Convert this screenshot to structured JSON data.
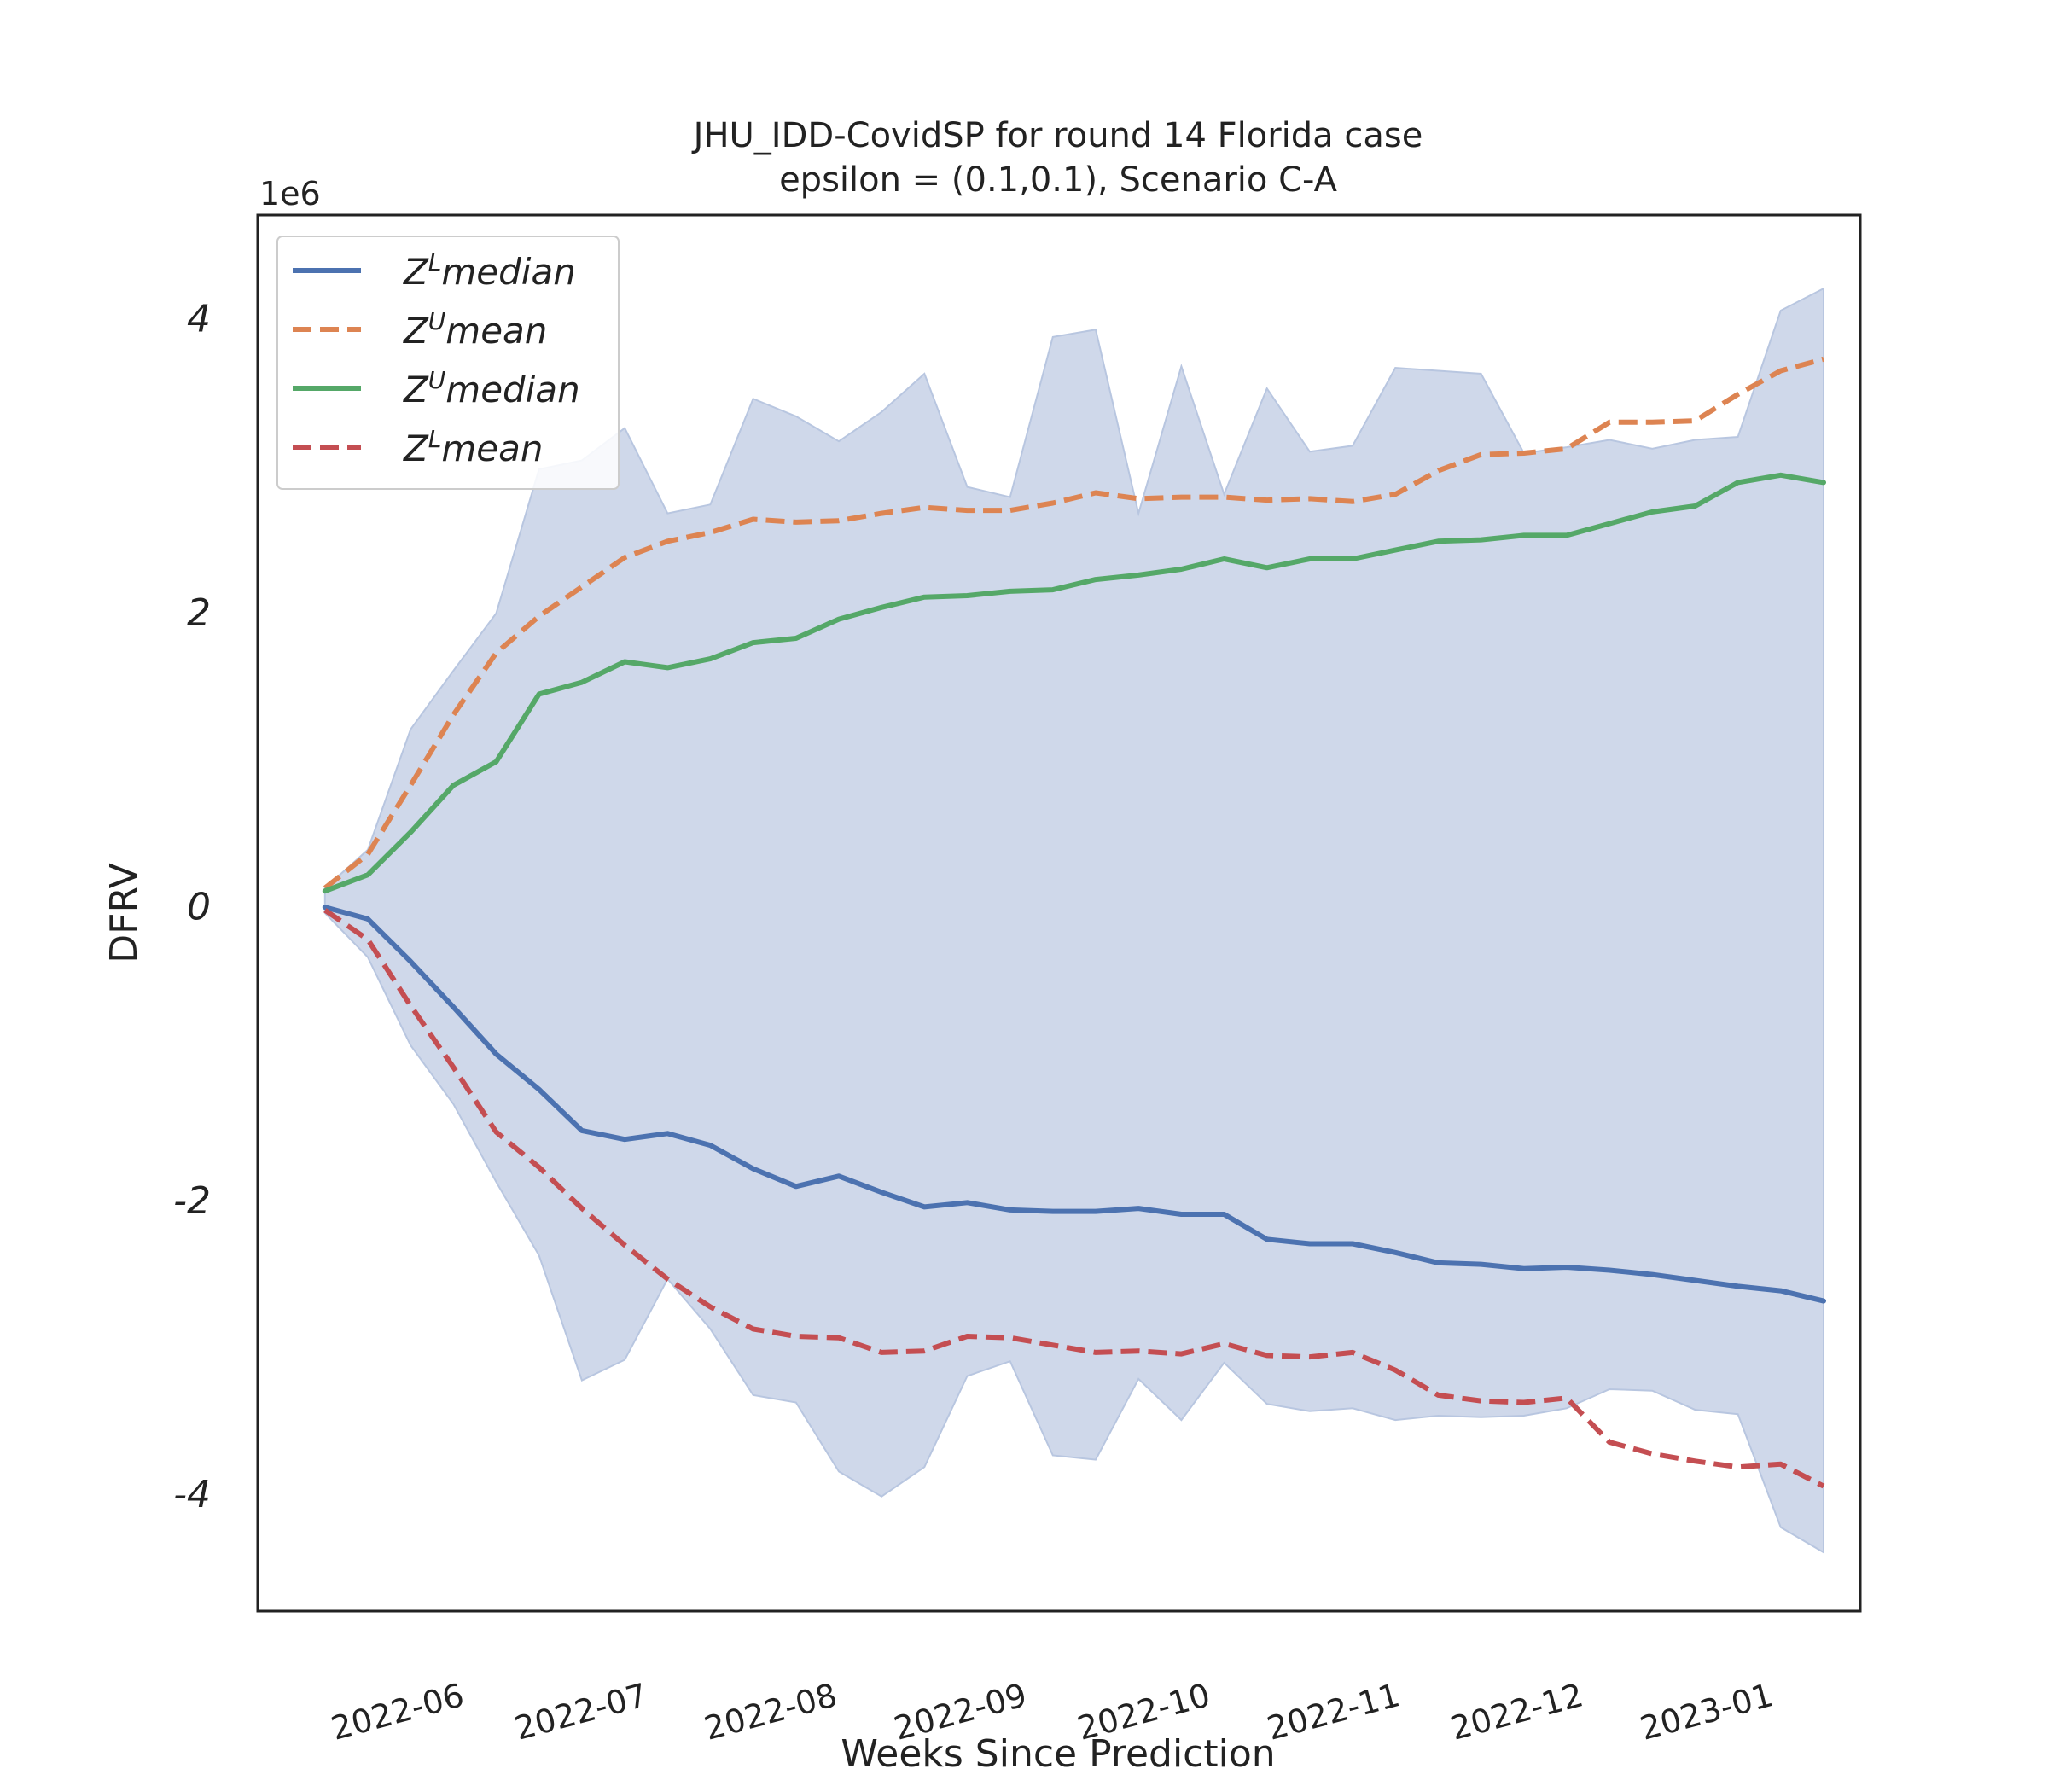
{
  "chart_data": {
    "type": "line",
    "title_line1": "JHU_IDD-CovidSP for round 14 Florida  case",
    "title_line2": "epsilon = (0.1,0.1), Scenario C-A",
    "xlabel": "Weeks Since Prediction",
    "ylabel": "DFRV",
    "y_offset_text": "1e6",
    "y_scale": 1000000,
    "ylim": [
      -4.8,
      4.7
    ],
    "xlim": [
      "2022-05-03",
      "2023-01-20"
    ],
    "yticks": [
      {
        "value": 4,
        "label": "4"
      },
      {
        "value": 2,
        "label": "2"
      },
      {
        "value": 0,
        "label": "0"
      },
      {
        "value": -2,
        "label": "-2"
      },
      {
        "value": -4,
        "label": "-4"
      }
    ],
    "xticks": [
      {
        "date": "2022-06-01",
        "label": "2022-06"
      },
      {
        "date": "2022-07-01",
        "label": "2022-07"
      },
      {
        "date": "2022-08-01",
        "label": "2022-08"
      },
      {
        "date": "2022-09-01",
        "label": "2022-09"
      },
      {
        "date": "2022-10-01",
        "label": "2022-10"
      },
      {
        "date": "2022-11-01",
        "label": "2022-11"
      },
      {
        "date": "2022-12-01",
        "label": "2022-12"
      },
      {
        "date": "2023-01-01",
        "label": "2023-01"
      }
    ],
    "x": [
      "2022-05-14",
      "2022-05-21",
      "2022-05-28",
      "2022-06-04",
      "2022-06-11",
      "2022-06-18",
      "2022-06-25",
      "2022-07-02",
      "2022-07-09",
      "2022-07-16",
      "2022-07-23",
      "2022-07-30",
      "2022-08-06",
      "2022-08-13",
      "2022-08-20",
      "2022-08-27",
      "2022-09-03",
      "2022-09-10",
      "2022-09-17",
      "2022-09-24",
      "2022-10-01",
      "2022-10-08",
      "2022-10-15",
      "2022-10-22",
      "2022-10-29",
      "2022-11-05",
      "2022-11-12",
      "2022-11-19",
      "2022-11-26",
      "2022-12-03",
      "2022-12-10",
      "2022-12-17",
      "2022-12-24",
      "2022-12-31",
      "2023-01-07",
      "2023-01-14"
    ],
    "band": {
      "color": "#cfd8ea",
      "upper": [
        0.12,
        0.38,
        1.2,
        1.6,
        1.99,
        2.97,
        3.03,
        3.25,
        2.67,
        2.73,
        3.45,
        3.33,
        3.16,
        3.36,
        3.62,
        2.85,
        2.78,
        3.87,
        3.92,
        2.67,
        3.67,
        2.8,
        3.52,
        3.09,
        3.13,
        3.66,
        3.64,
        3.62,
        3.08,
        3.12,
        3.17,
        3.11,
        3.17,
        3.19,
        4.05,
        4.2
      ],
      "lower": [
        -0.05,
        -0.35,
        -0.95,
        -1.35,
        -1.88,
        -2.38,
        -3.23,
        -3.09,
        -2.54,
        -2.88,
        -3.33,
        -3.38,
        -3.85,
        -4.02,
        -3.82,
        -3.2,
        -3.1,
        -3.74,
        -3.77,
        -3.22,
        -3.5,
        -3.11,
        -3.39,
        -3.44,
        -3.42,
        -3.5,
        -3.47,
        -3.48,
        -3.47,
        -3.42,
        -3.29,
        -3.3,
        -3.43,
        -3.46,
        -4.23,
        -4.4
      ]
    },
    "series": [
      {
        "name": "median",
        "sup": "L",
        "color": "#4c72b0",
        "dash": false,
        "values": [
          -0.01,
          -0.09,
          -0.38,
          -0.69,
          -1.01,
          -1.25,
          -1.53,
          -1.59,
          -1.55,
          -1.63,
          -1.79,
          -1.91,
          -1.84,
          -1.95,
          -2.05,
          -2.02,
          -2.07,
          -2.08,
          -2.08,
          -2.06,
          -2.1,
          -2.1,
          -2.27,
          -2.3,
          -2.3,
          -2.36,
          -2.43,
          -2.44,
          -2.47,
          -2.46,
          -2.48,
          -2.51,
          -2.55,
          -2.59,
          -2.62,
          -2.69
        ]
      },
      {
        "name": "mean",
        "sup": "U",
        "color": "#dd8452",
        "dash": true,
        "values": [
          0.12,
          0.35,
          0.82,
          1.3,
          1.72,
          1.97,
          2.17,
          2.37,
          2.48,
          2.54,
          2.63,
          2.61,
          2.62,
          2.67,
          2.71,
          2.69,
          2.69,
          2.74,
          2.81,
          2.77,
          2.78,
          2.78,
          2.76,
          2.77,
          2.75,
          2.8,
          2.96,
          3.07,
          3.08,
          3.11,
          3.29,
          3.29,
          3.3,
          3.48,
          3.64,
          3.72
        ]
      },
      {
        "name": "median",
        "sup": "U",
        "color": "#55a868",
        "dash": false,
        "values": [
          0.1,
          0.21,
          0.5,
          0.82,
          0.98,
          1.44,
          1.52,
          1.66,
          1.62,
          1.68,
          1.79,
          1.82,
          1.95,
          2.03,
          2.1,
          2.11,
          2.14,
          2.15,
          2.22,
          2.25,
          2.29,
          2.36,
          2.3,
          2.36,
          2.36,
          2.42,
          2.48,
          2.49,
          2.52,
          2.52,
          2.6,
          2.68,
          2.72,
          2.88,
          2.93,
          2.88
        ]
      },
      {
        "name": "mean",
        "sup": "L",
        "color": "#c44e52",
        "dash": true,
        "values": [
          -0.03,
          -0.23,
          -0.68,
          -1.1,
          -1.54,
          -1.78,
          -2.06,
          -2.31,
          -2.54,
          -2.73,
          -2.88,
          -2.93,
          -2.94,
          -3.04,
          -3.03,
          -2.93,
          -2.94,
          -2.99,
          -3.04,
          -3.03,
          -3.05,
          -2.98,
          -3.06,
          -3.07,
          -3.04,
          -3.16,
          -3.33,
          -3.37,
          -3.38,
          -3.35,
          -3.65,
          -3.73,
          -3.78,
          -3.82,
          -3.8,
          -3.95
        ]
      }
    ],
    "legend_position": "upper left",
    "grid": false
  }
}
